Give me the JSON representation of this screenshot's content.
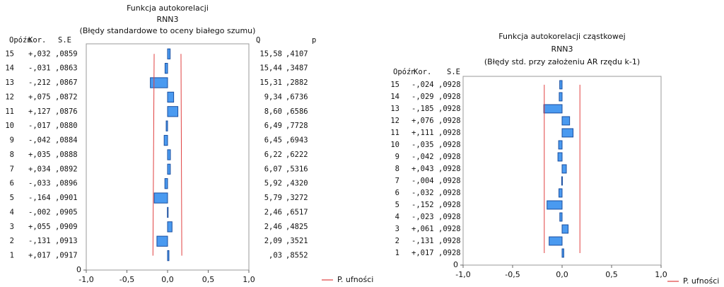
{
  "chart_data": [
    {
      "type": "bar",
      "title": "Funkcja autokorelacji",
      "subtitle": [
        "RNN3",
        "(Błędy standardowe to oceny białego szumu)"
      ],
      "columns": [
        "Opóźn",
        "Kor.",
        "S.E",
        "Q",
        "p"
      ],
      "categories": [
        1,
        2,
        3,
        4,
        5,
        6,
        7,
        8,
        9,
        10,
        11,
        12,
        13,
        14,
        15
      ],
      "values": [
        0.017,
        -0.131,
        0.055,
        -0.002,
        -0.164,
        -0.033,
        0.034,
        0.035,
        -0.042,
        -0.017,
        0.127,
        0.075,
        -0.212,
        -0.031,
        0.032
      ],
      "value_labels": [
        "+,017",
        "-,131",
        "+,055",
        "-,002",
        "-,164",
        "-,033",
        "+,034",
        "+,035",
        "-,042",
        "-,017",
        "+,127",
        "+,075",
        "-,212",
        "-,031",
        "+,032"
      ],
      "se": [
        0.0917,
        0.0913,
        0.0909,
        0.0905,
        0.0901,
        0.0896,
        0.0892,
        0.0888,
        0.0884,
        0.088,
        0.0876,
        0.0872,
        0.0867,
        0.0863,
        0.0859
      ],
      "se_labels": [
        ",0917",
        ",0913",
        ",0909",
        ",0905",
        ",0901",
        ",0896",
        ",0892",
        ",0888",
        ",0884",
        ",0880",
        ",0876",
        ",0872",
        ",0867",
        ",0863",
        ",0859"
      ],
      "q": [
        0.03,
        2.09,
        2.46,
        2.46,
        5.79,
        5.92,
        6.07,
        6.22,
        6.45,
        6.49,
        8.6,
        9.34,
        15.31,
        15.44,
        15.58
      ],
      "q_labels": [
        ",03",
        "2,09",
        "2,46",
        "2,46",
        "5,79",
        "5,92",
        "6,07",
        "6,22",
        "6,45",
        "6,49",
        "8,60",
        "9,34",
        "15,31",
        "15,44",
        "15,58"
      ],
      "p": [
        0.8552,
        0.3521,
        0.4825,
        0.6517,
        0.3272,
        0.432,
        0.5316,
        0.6222,
        0.6943,
        0.7728,
        0.6586,
        0.6736,
        0.2882,
        0.3487,
        0.4107
      ],
      "p_labels": [
        ",8552",
        ",3521",
        ",4825",
        ",6517",
        ",3272",
        ",4320",
        ",5316",
        ",6222",
        ",6943",
        ",7728",
        ",6586",
        ",6736",
        ",2882",
        ",3487",
        ",4107"
      ],
      "color": "#4a9af0",
      "xlim": [
        -1,
        1
      ],
      "xticks": [
        {
          "value": -1,
          "label": "-1,0"
        },
        {
          "value": -0.5,
          "label": "-0,5"
        },
        {
          "value": 0,
          "label": "0,0"
        },
        {
          "value": 0.5,
          "label": "0,5"
        },
        {
          "value": 1,
          "label": "1,0"
        }
      ],
      "ylim": [
        0,
        15.7
      ],
      "yticks": [
        0
      ],
      "limits": {
        "name": "P. ufności",
        "color": "#e04040",
        "lower": [
          -0.18,
          -0.165
        ],
        "upper": [
          0.175,
          0.165
        ]
      }
    },
    {
      "type": "bar",
      "title": "Funkcja autokorelacji cząstkowej",
      "subtitle": [
        "RNN3",
        "(Błędy std. przy założeniu AR rzędu k-1)"
      ],
      "columns": [
        "Opóźn",
        "Kor.",
        "S.E"
      ],
      "categories": [
        1,
        2,
        3,
        4,
        5,
        6,
        7,
        8,
        9,
        10,
        11,
        12,
        13,
        14,
        15
      ],
      "values": [
        0.017,
        -0.131,
        0.061,
        -0.023,
        -0.152,
        -0.032,
        -0.004,
        0.043,
        -0.042,
        -0.035,
        0.111,
        0.076,
        -0.185,
        -0.029,
        -0.024
      ],
      "value_labels": [
        "+,017",
        "-,131",
        "+,061",
        "-,023",
        "-,152",
        "-,032",
        "-,004",
        "+,043",
        "-,042",
        "-,035",
        "+,111",
        "+,076",
        "-,185",
        "-,029",
        "-,024"
      ],
      "se": [
        0.0928,
        0.0928,
        0.0928,
        0.0928,
        0.0928,
        0.0928,
        0.0928,
        0.0928,
        0.0928,
        0.0928,
        0.0928,
        0.0928,
        0.0928,
        0.0928,
        0.0928
      ],
      "se_labels": [
        ",0928",
        ",0928",
        ",0928",
        ",0928",
        ",0928",
        ",0928",
        ",0928",
        ",0928",
        ",0928",
        ",0928",
        ",0928",
        ",0928",
        ",0928",
        ",0928",
        ",0928"
      ],
      "color": "#4a9af0",
      "xlim": [
        -1,
        1
      ],
      "xticks": [
        {
          "value": -1,
          "label": "-1,0"
        },
        {
          "value": -0.5,
          "label": "-0,5"
        },
        {
          "value": 0,
          "label": "0,0"
        },
        {
          "value": 0.5,
          "label": "0,5"
        },
        {
          "value": 1,
          "label": "1,0"
        }
      ],
      "ylim": [
        0,
        15.7
      ],
      "yticks": [
        0
      ],
      "limits": {
        "name": "P. ufności",
        "color": "#e04040",
        "lower": [
          -0.18,
          -0.18
        ],
        "upper": [
          0.18,
          0.18
        ]
      }
    }
  ]
}
